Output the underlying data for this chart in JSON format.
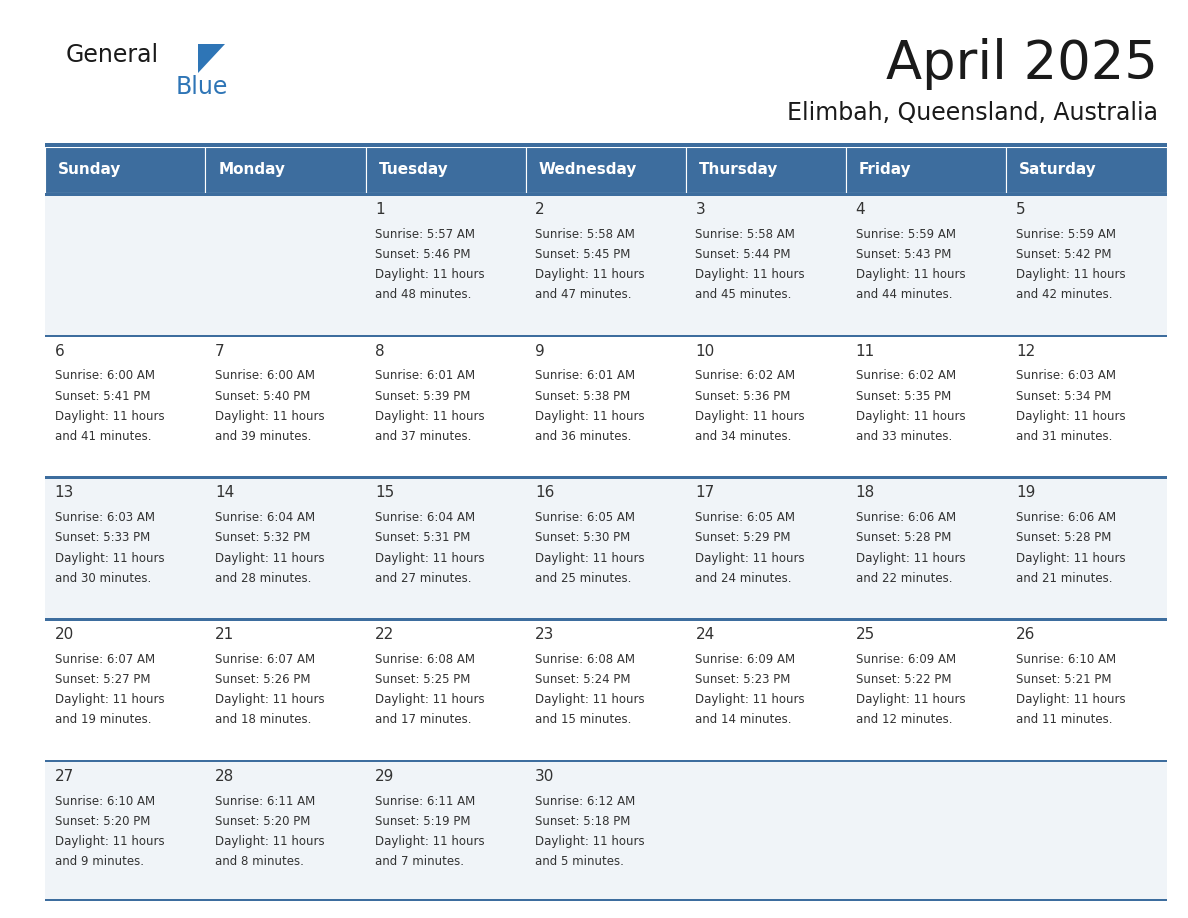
{
  "title": "April 2025",
  "subtitle": "Elimbah, Queensland, Australia",
  "days_of_week": [
    "Sunday",
    "Monday",
    "Tuesday",
    "Wednesday",
    "Thursday",
    "Friday",
    "Saturday"
  ],
  "header_bg_color": "#3d6d9e",
  "header_text_color": "#ffffff",
  "cell_bg_color_odd": "#f0f4f8",
  "cell_bg_color_even": "#ffffff",
  "cell_border_color": "#3d6d9e",
  "text_color": "#333333",
  "logo_triangle_color": "#2e75b6",
  "logo_blue_color": "#2e75b6",
  "title_fontsize": 38,
  "subtitle_fontsize": 17,
  "header_fontsize": 11,
  "day_num_fontsize": 11,
  "cell_text_fontsize": 8.5,
  "calendar_data": [
    [
      null,
      null,
      {
        "day": 1,
        "sunrise": "5:57 AM",
        "sunset": "5:46 PM",
        "daylight_line1": "Daylight: 11 hours",
        "daylight_line2": "and 48 minutes."
      },
      {
        "day": 2,
        "sunrise": "5:58 AM",
        "sunset": "5:45 PM",
        "daylight_line1": "Daylight: 11 hours",
        "daylight_line2": "and 47 minutes."
      },
      {
        "day": 3,
        "sunrise": "5:58 AM",
        "sunset": "5:44 PM",
        "daylight_line1": "Daylight: 11 hours",
        "daylight_line2": "and 45 minutes."
      },
      {
        "day": 4,
        "sunrise": "5:59 AM",
        "sunset": "5:43 PM",
        "daylight_line1": "Daylight: 11 hours",
        "daylight_line2": "and 44 minutes."
      },
      {
        "day": 5,
        "sunrise": "5:59 AM",
        "sunset": "5:42 PM",
        "daylight_line1": "Daylight: 11 hours",
        "daylight_line2": "and 42 minutes."
      }
    ],
    [
      {
        "day": 6,
        "sunrise": "6:00 AM",
        "sunset": "5:41 PM",
        "daylight_line1": "Daylight: 11 hours",
        "daylight_line2": "and 41 minutes."
      },
      {
        "day": 7,
        "sunrise": "6:00 AM",
        "sunset": "5:40 PM",
        "daylight_line1": "Daylight: 11 hours",
        "daylight_line2": "and 39 minutes."
      },
      {
        "day": 8,
        "sunrise": "6:01 AM",
        "sunset": "5:39 PM",
        "daylight_line1": "Daylight: 11 hours",
        "daylight_line2": "and 37 minutes."
      },
      {
        "day": 9,
        "sunrise": "6:01 AM",
        "sunset": "5:38 PM",
        "daylight_line1": "Daylight: 11 hours",
        "daylight_line2": "and 36 minutes."
      },
      {
        "day": 10,
        "sunrise": "6:02 AM",
        "sunset": "5:36 PM",
        "daylight_line1": "Daylight: 11 hours",
        "daylight_line2": "and 34 minutes."
      },
      {
        "day": 11,
        "sunrise": "6:02 AM",
        "sunset": "5:35 PM",
        "daylight_line1": "Daylight: 11 hours",
        "daylight_line2": "and 33 minutes."
      },
      {
        "day": 12,
        "sunrise": "6:03 AM",
        "sunset": "5:34 PM",
        "daylight_line1": "Daylight: 11 hours",
        "daylight_line2": "and 31 minutes."
      }
    ],
    [
      {
        "day": 13,
        "sunrise": "6:03 AM",
        "sunset": "5:33 PM",
        "daylight_line1": "Daylight: 11 hours",
        "daylight_line2": "and 30 minutes."
      },
      {
        "day": 14,
        "sunrise": "6:04 AM",
        "sunset": "5:32 PM",
        "daylight_line1": "Daylight: 11 hours",
        "daylight_line2": "and 28 minutes."
      },
      {
        "day": 15,
        "sunrise": "6:04 AM",
        "sunset": "5:31 PM",
        "daylight_line1": "Daylight: 11 hours",
        "daylight_line2": "and 27 minutes."
      },
      {
        "day": 16,
        "sunrise": "6:05 AM",
        "sunset": "5:30 PM",
        "daylight_line1": "Daylight: 11 hours",
        "daylight_line2": "and 25 minutes."
      },
      {
        "day": 17,
        "sunrise": "6:05 AM",
        "sunset": "5:29 PM",
        "daylight_line1": "Daylight: 11 hours",
        "daylight_line2": "and 24 minutes."
      },
      {
        "day": 18,
        "sunrise": "6:06 AM",
        "sunset": "5:28 PM",
        "daylight_line1": "Daylight: 11 hours",
        "daylight_line2": "and 22 minutes."
      },
      {
        "day": 19,
        "sunrise": "6:06 AM",
        "sunset": "5:28 PM",
        "daylight_line1": "Daylight: 11 hours",
        "daylight_line2": "and 21 minutes."
      }
    ],
    [
      {
        "day": 20,
        "sunrise": "6:07 AM",
        "sunset": "5:27 PM",
        "daylight_line1": "Daylight: 11 hours",
        "daylight_line2": "and 19 minutes."
      },
      {
        "day": 21,
        "sunrise": "6:07 AM",
        "sunset": "5:26 PM",
        "daylight_line1": "Daylight: 11 hours",
        "daylight_line2": "and 18 minutes."
      },
      {
        "day": 22,
        "sunrise": "6:08 AM",
        "sunset": "5:25 PM",
        "daylight_line1": "Daylight: 11 hours",
        "daylight_line2": "and 17 minutes."
      },
      {
        "day": 23,
        "sunrise": "6:08 AM",
        "sunset": "5:24 PM",
        "daylight_line1": "Daylight: 11 hours",
        "daylight_line2": "and 15 minutes."
      },
      {
        "day": 24,
        "sunrise": "6:09 AM",
        "sunset": "5:23 PM",
        "daylight_line1": "Daylight: 11 hours",
        "daylight_line2": "and 14 minutes."
      },
      {
        "day": 25,
        "sunrise": "6:09 AM",
        "sunset": "5:22 PM",
        "daylight_line1": "Daylight: 11 hours",
        "daylight_line2": "and 12 minutes."
      },
      {
        "day": 26,
        "sunrise": "6:10 AM",
        "sunset": "5:21 PM",
        "daylight_line1": "Daylight: 11 hours",
        "daylight_line2": "and 11 minutes."
      }
    ],
    [
      {
        "day": 27,
        "sunrise": "6:10 AM",
        "sunset": "5:20 PM",
        "daylight_line1": "Daylight: 11 hours",
        "daylight_line2": "and 9 minutes."
      },
      {
        "day": 28,
        "sunrise": "6:11 AM",
        "sunset": "5:20 PM",
        "daylight_line1": "Daylight: 11 hours",
        "daylight_line2": "and 8 minutes."
      },
      {
        "day": 29,
        "sunrise": "6:11 AM",
        "sunset": "5:19 PM",
        "daylight_line1": "Daylight: 11 hours",
        "daylight_line2": "and 7 minutes."
      },
      {
        "day": 30,
        "sunrise": "6:12 AM",
        "sunset": "5:18 PM",
        "daylight_line1": "Daylight: 11 hours",
        "daylight_line2": "and 5 minutes."
      },
      null,
      null,
      null
    ]
  ]
}
